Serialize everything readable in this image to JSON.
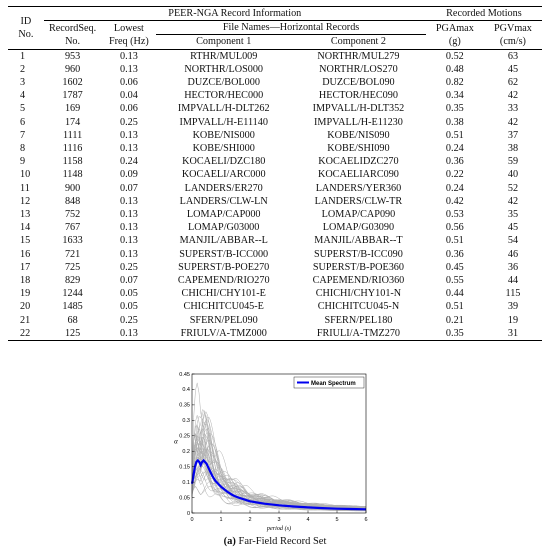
{
  "table": {
    "header": {
      "id": "ID No.",
      "id_line1": "ID",
      "id_line2": "No.",
      "group1": "PEER-NGA Record Information",
      "group2": "Recorded Motions",
      "seq_line1": "RecordSeq.",
      "seq_line2": "No.",
      "freq_line1": "Lowest",
      "freq_line2": "Freq (Hz)",
      "files": "File Names—Horizontal Records",
      "comp1": "Component 1",
      "comp2": "Component 2",
      "pga_line1": "PGAmax",
      "pga_line2": "(g)",
      "pgv_line1": "PGVmax",
      "pgv_line2": "(cm/s)"
    },
    "rows": [
      {
        "id": "1",
        "seq": "953",
        "freq": "0.13",
        "c1": "RTHR/MUL009",
        "c2": "NORTHR/MUL279",
        "pga": "0.52",
        "pgv": "63"
      },
      {
        "id": "2",
        "seq": "960",
        "freq": "0.13",
        "c1": "NORTHR/LOS000",
        "c2": "NORTHR/LOS270",
        "pga": "0.48",
        "pgv": "45"
      },
      {
        "id": "3",
        "seq": "1602",
        "freq": "0.06",
        "c1": "DUZCE/BOL000",
        "c2": "DUZCE/BOL090",
        "pga": "0.82",
        "pgv": "62"
      },
      {
        "id": "4",
        "seq": "1787",
        "freq": "0.04",
        "c1": "HECTOR/HEC000",
        "c2": "HECTOR/HEC090",
        "pga": "0.34",
        "pgv": "42"
      },
      {
        "id": "5",
        "seq": "169",
        "freq": "0.06",
        "c1": "IMPVALL/H-DLT262",
        "c2": "IMPVALL/H-DLT352",
        "pga": "0.35",
        "pgv": "33"
      },
      {
        "id": "6",
        "seq": "174",
        "freq": "0.25",
        "c1": "IMPVALL/H-E11140",
        "c2": "IMPVALL/H-E11230",
        "pga": "0.38",
        "pgv": "42"
      },
      {
        "id": "7",
        "seq": "1111",
        "freq": "0.13",
        "c1": "KOBE/NIS000",
        "c2": "KOBE/NIS090",
        "pga": "0.51",
        "pgv": "37"
      },
      {
        "id": "8",
        "seq": "1116",
        "freq": "0.13",
        "c1": "KOBE/SHI000",
        "c2": "KOBE/SHI090",
        "pga": "0.24",
        "pgv": "38"
      },
      {
        "id": "9",
        "seq": "1158",
        "freq": "0.24",
        "c1": "KOCAELI/DZC180",
        "c2": "KOCAELIDZC270",
        "pga": "0.36",
        "pgv": "59"
      },
      {
        "id": "10",
        "seq": "1148",
        "freq": "0.09",
        "c1": "KOCAELI/ARC000",
        "c2": "KOCAELIARC090",
        "pga": "0.22",
        "pgv": "40"
      },
      {
        "id": "11",
        "seq": "900",
        "freq": "0.07",
        "c1": "LANDERS/ER270",
        "c2": "LANDERS/YER360",
        "pga": "0.24",
        "pgv": "52"
      },
      {
        "id": "12",
        "seq": "848",
        "freq": "0.13",
        "c1": "LANDERS/CLW-LN",
        "c2": "LANDERS/CLW-TR",
        "pga": "0.42",
        "pgv": "42"
      },
      {
        "id": "13",
        "seq": "752",
        "freq": "0.13",
        "c1": "LOMAP/CAP000",
        "c2": "LOMAP/CAP090",
        "pga": "0.53",
        "pgv": "35"
      },
      {
        "id": "14",
        "seq": "767",
        "freq": "0.13",
        "c1": "LOMAP/G03000",
        "c2": "LOMAP/G03090",
        "pga": "0.56",
        "pgv": "45"
      },
      {
        "id": "15",
        "seq": "1633",
        "freq": "0.13",
        "c1": "MANJIL/ABBAR--L",
        "c2": "MANJIL/ABBAR--T",
        "pga": "0.51",
        "pgv": "54"
      },
      {
        "id": "16",
        "seq": "721",
        "freq": "0.13",
        "c1": "SUPERST/B-ICC000",
        "c2": "SUPERST/B-ICC090",
        "pga": "0.36",
        "pgv": "46"
      },
      {
        "id": "17",
        "seq": "725",
        "freq": "0.25",
        "c1": "SUPERST/B-POE270",
        "c2": "SUPERST/B-POE360",
        "pga": "0.45",
        "pgv": "36"
      },
      {
        "id": "18",
        "seq": "829",
        "freq": "0.07",
        "c1": "CAPEMEND/RIO270",
        "c2": "CAPEMEND/RIO360",
        "pga": "0.55",
        "pgv": "44"
      },
      {
        "id": "19",
        "seq": "1244",
        "freq": "0.05",
        "c1": "CHICHI/CHY101-E",
        "c2": "CHICHI/CHY101-N",
        "pga": "0.44",
        "pgv": "115"
      },
      {
        "id": "20",
        "seq": "1485",
        "freq": "0.05",
        "c1": "CHICHITCU045-E",
        "c2": "CHICHITCU045-N",
        "pga": "0.51",
        "pgv": "39"
      },
      {
        "id": "21",
        "seq": "68",
        "freq": "0.25",
        "c1": "SFERN/PEL090",
        "c2": "SFERN/PEL180",
        "pga": "0.21",
        "pgv": "19"
      },
      {
        "id": "22",
        "seq": "125",
        "freq": "0.13",
        "c1": "FRIULV/A-TMZ000",
        "c2": "FRIULI/A-TMZ270",
        "pga": "0.35",
        "pgv": "31"
      }
    ]
  },
  "figure": {
    "caption_label": "(a)",
    "caption_text": " Far-Field Record Set"
  },
  "chart_data": {
    "type": "line",
    "xlabel": "period (s)",
    "ylabel": "α",
    "xlim": [
      0,
      6
    ],
    "ylim": [
      0,
      0.45
    ],
    "xticks": [
      "0",
      "1",
      "2",
      "3",
      "4",
      "5",
      "6"
    ],
    "yticks": [
      "0",
      "0.05",
      "0.1",
      "0.15",
      "0.2",
      "0.25",
      "0.3",
      "0.35",
      "0.4",
      "0.45"
    ],
    "grid": false,
    "legend_position": "top-right",
    "series": [
      {
        "name": "Mean Spectrum",
        "color": "#0000ee",
        "x": [
          0,
          0.05,
          0.1,
          0.15,
          0.2,
          0.25,
          0.3,
          0.35,
          0.4,
          0.5,
          0.6,
          0.7,
          0.8,
          0.9,
          1.0,
          1.2,
          1.4,
          1.6,
          1.8,
          2.0,
          2.5,
          3.0,
          3.5,
          4.0,
          4.5,
          5.0,
          5.5,
          6.0
        ],
        "y": [
          0.095,
          0.12,
          0.15,
          0.165,
          0.17,
          0.165,
          0.155,
          0.165,
          0.17,
          0.16,
          0.14,
          0.12,
          0.105,
          0.095,
          0.085,
          0.07,
          0.058,
          0.05,
          0.044,
          0.038,
          0.03,
          0.025,
          0.021,
          0.018,
          0.016,
          0.014,
          0.013,
          0.012
        ]
      }
    ],
    "individual_records": {
      "color": "#b0b0b0",
      "count": 44
    }
  }
}
